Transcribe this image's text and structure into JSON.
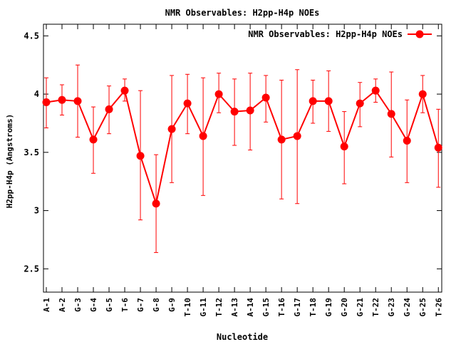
{
  "chart_data": {
    "type": "line",
    "title": "NMR Observables: H2pp-H4p NOEs",
    "xlabel": "Nucleotide",
    "ylabel": "H2pp-H4p (Angstroms)",
    "ylim": [
      2.3,
      4.6
    ],
    "yticks": [
      2.5,
      3,
      3.5,
      4,
      4.5
    ],
    "ytick_labels": [
      "2.5",
      "3",
      "3.5",
      "4",
      "4.5"
    ],
    "legend": "top-right",
    "categories": [
      "A-1",
      "A-2",
      "G-3",
      "G-4",
      "G-5",
      "T-6",
      "G-7",
      "G-8",
      "G-9",
      "T-10",
      "G-11",
      "T-12",
      "A-13",
      "A-14",
      "G-15",
      "T-16",
      "G-17",
      "T-18",
      "G-19",
      "G-20",
      "G-21",
      "T-22",
      "G-23",
      "G-24",
      "G-25",
      "T-26"
    ],
    "series": [
      {
        "name": "NMR Observables: H2pp-H4p NOEs",
        "color": "#ff0000",
        "values": [
          3.93,
          3.95,
          3.94,
          3.61,
          3.87,
          4.03,
          3.47,
          3.06,
          3.7,
          3.92,
          3.64,
          4.0,
          3.85,
          3.86,
          3.97,
          3.61,
          3.64,
          3.94,
          3.94,
          3.55,
          3.92,
          4.03,
          3.83,
          3.6,
          4.0,
          3.54
        ],
        "err_low": [
          3.71,
          3.82,
          3.63,
          3.32,
          3.66,
          3.94,
          2.92,
          2.64,
          3.24,
          3.66,
          3.13,
          3.84,
          3.56,
          3.52,
          3.76,
          3.1,
          3.06,
          3.75,
          3.68,
          3.23,
          3.72,
          3.93,
          3.46,
          3.24,
          3.84,
          3.2
        ],
        "err_high": [
          4.14,
          4.08,
          4.25,
          3.89,
          4.07,
          4.13,
          4.03,
          3.48,
          4.16,
          4.17,
          4.14,
          4.18,
          4.13,
          4.18,
          4.16,
          4.12,
          4.21,
          4.12,
          4.2,
          3.85,
          4.1,
          4.13,
          4.19,
          3.95,
          4.16,
          3.87
        ]
      }
    ]
  }
}
